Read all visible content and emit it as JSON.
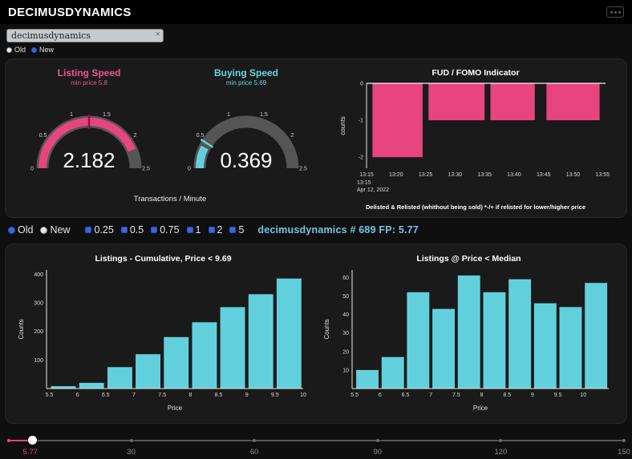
{
  "header": {
    "title": "DECIMUSDYNAMICS"
  },
  "search": {
    "value": "decimusdynamics",
    "clear_label": "×"
  },
  "top_radio": {
    "options": [
      "Old",
      "New"
    ],
    "selected": "New"
  },
  "mid_controls": {
    "radio_options": [
      "Old",
      "New"
    ],
    "radio_selected": "Old",
    "checkbox_options": [
      "0.25",
      "0.5",
      "0.75",
      "1",
      "2",
      "5"
    ],
    "info_text": "decimusdynamics # 689 FP: 5.77"
  },
  "gauge_section": {
    "axis_title": "Transactions / Minute"
  },
  "colors": {
    "pink": "#e8457f",
    "cyan": "#62d0dc",
    "gauge_track": "#555555",
    "threshold_red": "#8f1144",
    "info_blue": "#74c6e4"
  },
  "chart_data": [
    {
      "id": "listing_speed_gauge",
      "type": "gauge",
      "title": "Listing Speed",
      "subtitle": "min price 5.8",
      "value": 2.182,
      "min": 0,
      "max": 2.5,
      "ticks": [
        0,
        0.5,
        1,
        1.5,
        2,
        2.5
      ],
      "threshold": 1.25,
      "color": "#e8457f",
      "threshold_color": "#8f1144"
    },
    {
      "id": "buying_speed_gauge",
      "type": "gauge",
      "title": "Buying Speed",
      "subtitle": "min price 5.69",
      "value": 0.369,
      "min": 0,
      "max": 2.5,
      "ticks": [
        0,
        0.5,
        1,
        1.5,
        2,
        2.5
      ],
      "threshold": 0.45,
      "color": "#62d0dc",
      "threshold_color": "#62d0dc"
    },
    {
      "id": "fud_fomo",
      "type": "bar",
      "title": "FUD / FOMO Indicator",
      "ylabel": "counts",
      "yticks": [
        0,
        -1,
        -2
      ],
      "ylim": [
        -2.3,
        0
      ],
      "x_unit": "minutes after 13:15",
      "xlim": [
        0,
        40.5
      ],
      "xticks": [
        {
          "x": 0,
          "label": "13:15"
        },
        {
          "x": 5,
          "label": "13:20"
        },
        {
          "x": 10,
          "label": "13:25"
        },
        {
          "x": 15,
          "label": "13:30"
        },
        {
          "x": 20,
          "label": "13:35"
        },
        {
          "x": 25,
          "label": "13:40"
        },
        {
          "x": 30,
          "label": "13:45"
        },
        {
          "x": 35,
          "label": "13:50"
        },
        {
          "x": 40,
          "label": "13:55"
        }
      ],
      "bars": [
        {
          "x0": 1.0,
          "x1": 9.5,
          "value": -2
        },
        {
          "x0": 10.5,
          "x1": 20.0,
          "value": -1
        },
        {
          "x0": 21.0,
          "x1": 28.5,
          "value": -1
        },
        {
          "x0": 30.5,
          "x1": 39.5,
          "value": -1
        }
      ],
      "date_note": [
        "13:15",
        "Apr 12, 2022"
      ],
      "caption": "Delisted & Relisted (whithout being sold) *-/+ if relisted for lower/higher price",
      "color": "#e8457f"
    },
    {
      "id": "listings_cumulative",
      "type": "bar",
      "title": "Listings - Cumulative, Price < 9.69",
      "xlabel": "Price",
      "ylabel": "Counts",
      "yticks": [
        100,
        200,
        300,
        400
      ],
      "ylim": [
        0,
        415
      ],
      "xlim": [
        5.45,
        10.0
      ],
      "xticks": [
        {
          "x": 5.5,
          "label": "5.5"
        },
        {
          "x": 6,
          "label": "6"
        },
        {
          "x": 6.5,
          "label": "6.5"
        },
        {
          "x": 7,
          "label": "7"
        },
        {
          "x": 7.5,
          "label": "7.5"
        },
        {
          "x": 8,
          "label": "8"
        },
        {
          "x": 8.5,
          "label": "8.5"
        },
        {
          "x": 9,
          "label": "9"
        },
        {
          "x": 9.5,
          "label": "9.5"
        },
        {
          "x": 10,
          "label": "10"
        }
      ],
      "categories_x": [
        5.5,
        6,
        6.5,
        7,
        7.5,
        8,
        8.5,
        9,
        9.5
      ],
      "bar_span": 0.44,
      "values": [
        8,
        20,
        75,
        120,
        180,
        232,
        285,
        330,
        385
      ],
      "color": "#62d0dc"
    },
    {
      "id": "listings_at_price_median",
      "type": "bar",
      "title": "Listings @ Price < Median",
      "xlabel": "Price",
      "ylabel": "Counts",
      "yticks": [
        10,
        20,
        30,
        40,
        50,
        60
      ],
      "ylim": [
        0,
        64
      ],
      "xlim": [
        5.45,
        10.5
      ],
      "xticks": [
        {
          "x": 5.5,
          "label": "5.5"
        },
        {
          "x": 6,
          "label": "6"
        },
        {
          "x": 6.5,
          "label": "6.5"
        },
        {
          "x": 7,
          "label": "7"
        },
        {
          "x": 7.5,
          "label": "7.5"
        },
        {
          "x": 8,
          "label": "8"
        },
        {
          "x": 8.5,
          "label": "8.5"
        },
        {
          "x": 9,
          "label": "9"
        },
        {
          "x": 9.5,
          "label": "9.5"
        },
        {
          "x": 10,
          "label": "10"
        }
      ],
      "categories_x": [
        5.5,
        6,
        6.5,
        7,
        7.5,
        8,
        8.5,
        9,
        9.5,
        10
      ],
      "bar_span": 0.44,
      "values": [
        10,
        17,
        52,
        43,
        61,
        52,
        59,
        46,
        44,
        57
      ],
      "color": "#62d0dc"
    }
  ],
  "slider": {
    "min": 0,
    "max": 150,
    "value": 5.77,
    "value_label": "5.77",
    "marks": [
      {
        "value": 30,
        "label": "30"
      },
      {
        "value": 60,
        "label": "60"
      },
      {
        "value": 90,
        "label": "90"
      },
      {
        "value": 120,
        "label": "120"
      },
      {
        "value": 150,
        "label": "150"
      }
    ]
  }
}
